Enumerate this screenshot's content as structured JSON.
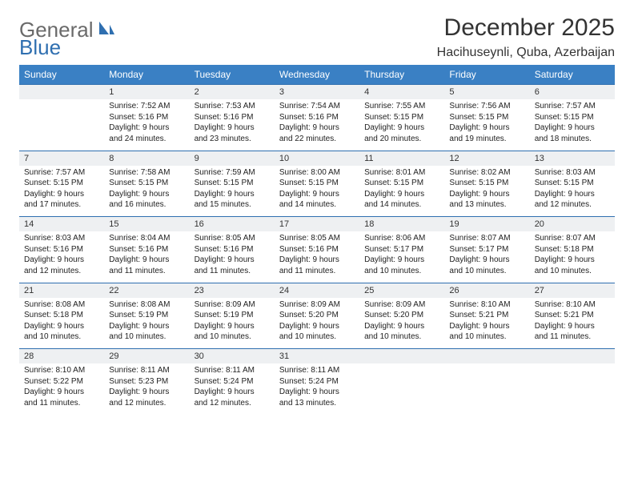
{
  "brand": {
    "part1": "General",
    "part2": "Blue"
  },
  "title": "December 2025",
  "location": "Hacihuseynli, Quba, Azerbaijan",
  "colors": {
    "header_bg": "#3a80c4",
    "header_text": "#ffffff",
    "daynum_bg": "#eef0f2",
    "row_border": "#2f6fb0",
    "body_text": "#222222",
    "title_text": "#333333",
    "logo_gray": "#6a6a6a",
    "logo_blue": "#2f6fb0"
  },
  "weekdays": [
    "Sunday",
    "Monday",
    "Tuesday",
    "Wednesday",
    "Thursday",
    "Friday",
    "Saturday"
  ],
  "weeks": [
    {
      "nums": [
        "",
        "1",
        "2",
        "3",
        "4",
        "5",
        "6"
      ],
      "cells": [
        "",
        "Sunrise: 7:52 AM\nSunset: 5:16 PM\nDaylight: 9 hours and 24 minutes.",
        "Sunrise: 7:53 AM\nSunset: 5:16 PM\nDaylight: 9 hours and 23 minutes.",
        "Sunrise: 7:54 AM\nSunset: 5:16 PM\nDaylight: 9 hours and 22 minutes.",
        "Sunrise: 7:55 AM\nSunset: 5:15 PM\nDaylight: 9 hours and 20 minutes.",
        "Sunrise: 7:56 AM\nSunset: 5:15 PM\nDaylight: 9 hours and 19 minutes.",
        "Sunrise: 7:57 AM\nSunset: 5:15 PM\nDaylight: 9 hours and 18 minutes."
      ]
    },
    {
      "nums": [
        "7",
        "8",
        "9",
        "10",
        "11",
        "12",
        "13"
      ],
      "cells": [
        "Sunrise: 7:57 AM\nSunset: 5:15 PM\nDaylight: 9 hours and 17 minutes.",
        "Sunrise: 7:58 AM\nSunset: 5:15 PM\nDaylight: 9 hours and 16 minutes.",
        "Sunrise: 7:59 AM\nSunset: 5:15 PM\nDaylight: 9 hours and 15 minutes.",
        "Sunrise: 8:00 AM\nSunset: 5:15 PM\nDaylight: 9 hours and 14 minutes.",
        "Sunrise: 8:01 AM\nSunset: 5:15 PM\nDaylight: 9 hours and 14 minutes.",
        "Sunrise: 8:02 AM\nSunset: 5:15 PM\nDaylight: 9 hours and 13 minutes.",
        "Sunrise: 8:03 AM\nSunset: 5:15 PM\nDaylight: 9 hours and 12 minutes."
      ]
    },
    {
      "nums": [
        "14",
        "15",
        "16",
        "17",
        "18",
        "19",
        "20"
      ],
      "cells": [
        "Sunrise: 8:03 AM\nSunset: 5:16 PM\nDaylight: 9 hours and 12 minutes.",
        "Sunrise: 8:04 AM\nSunset: 5:16 PM\nDaylight: 9 hours and 11 minutes.",
        "Sunrise: 8:05 AM\nSunset: 5:16 PM\nDaylight: 9 hours and 11 minutes.",
        "Sunrise: 8:05 AM\nSunset: 5:16 PM\nDaylight: 9 hours and 11 minutes.",
        "Sunrise: 8:06 AM\nSunset: 5:17 PM\nDaylight: 9 hours and 10 minutes.",
        "Sunrise: 8:07 AM\nSunset: 5:17 PM\nDaylight: 9 hours and 10 minutes.",
        "Sunrise: 8:07 AM\nSunset: 5:18 PM\nDaylight: 9 hours and 10 minutes."
      ]
    },
    {
      "nums": [
        "21",
        "22",
        "23",
        "24",
        "25",
        "26",
        "27"
      ],
      "cells": [
        "Sunrise: 8:08 AM\nSunset: 5:18 PM\nDaylight: 9 hours and 10 minutes.",
        "Sunrise: 8:08 AM\nSunset: 5:19 PM\nDaylight: 9 hours and 10 minutes.",
        "Sunrise: 8:09 AM\nSunset: 5:19 PM\nDaylight: 9 hours and 10 minutes.",
        "Sunrise: 8:09 AM\nSunset: 5:20 PM\nDaylight: 9 hours and 10 minutes.",
        "Sunrise: 8:09 AM\nSunset: 5:20 PM\nDaylight: 9 hours and 10 minutes.",
        "Sunrise: 8:10 AM\nSunset: 5:21 PM\nDaylight: 9 hours and 10 minutes.",
        "Sunrise: 8:10 AM\nSunset: 5:21 PM\nDaylight: 9 hours and 11 minutes."
      ]
    },
    {
      "nums": [
        "28",
        "29",
        "30",
        "31",
        "",
        "",
        ""
      ],
      "cells": [
        "Sunrise: 8:10 AM\nSunset: 5:22 PM\nDaylight: 9 hours and 11 minutes.",
        "Sunrise: 8:11 AM\nSunset: 5:23 PM\nDaylight: 9 hours and 12 minutes.",
        "Sunrise: 8:11 AM\nSunset: 5:24 PM\nDaylight: 9 hours and 12 minutes.",
        "Sunrise: 8:11 AM\nSunset: 5:24 PM\nDaylight: 9 hours and 13 minutes.",
        "",
        "",
        ""
      ]
    }
  ]
}
